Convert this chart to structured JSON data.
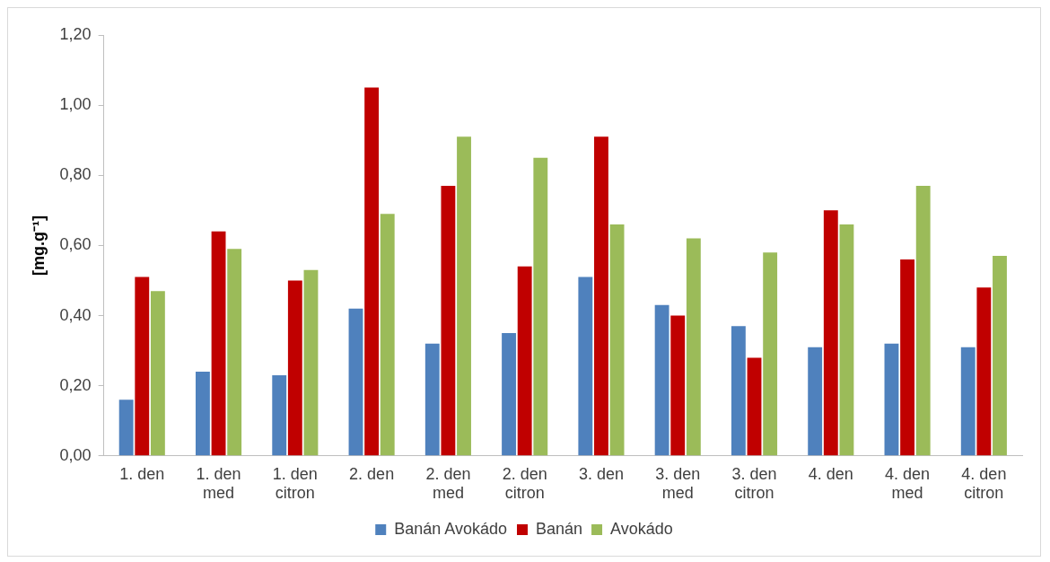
{
  "chart_data": {
    "type": "bar",
    "ylabel": "[mg.g⁻¹]",
    "categories": [
      "1. den",
      "1. den med",
      "1. den citron",
      "2. den",
      "2. den med",
      "2. den citron",
      "3. den",
      "3. den med",
      "3. den citron",
      "4. den",
      "4. den med",
      "4. den citron"
    ],
    "series": [
      {
        "name": "Banán Avokádo",
        "color": "#4f81bd",
        "values": [
          0.16,
          0.24,
          0.23,
          0.42,
          0.32,
          0.35,
          0.51,
          0.43,
          0.37,
          0.31,
          0.32,
          0.31
        ]
      },
      {
        "name": "Banán",
        "color": "#c00000",
        "values": [
          0.51,
          0.64,
          0.5,
          1.05,
          0.77,
          0.54,
          0.91,
          0.4,
          0.28,
          0.7,
          0.56,
          0.48
        ]
      },
      {
        "name": "Avokádo",
        "color": "#9bbb59",
        "values": [
          0.47,
          0.59,
          0.53,
          0.69,
          0.91,
          0.85,
          0.66,
          0.62,
          0.58,
          0.66,
          0.77,
          0.57
        ]
      }
    ],
    "ylim": [
      0,
      1.2
    ],
    "yticks": [
      {
        "value": 0,
        "label": "0,00"
      },
      {
        "value": 0.2,
        "label": "0,20"
      },
      {
        "value": 0.4,
        "label": "0,40"
      },
      {
        "value": 0.6,
        "label": "0,60"
      },
      {
        "value": 0.8,
        "label": "0,80"
      },
      {
        "value": 1.0,
        "label": "1,00"
      },
      {
        "value": 1.2,
        "label": "1,20"
      }
    ],
    "grid": false,
    "legend": "bottom"
  }
}
